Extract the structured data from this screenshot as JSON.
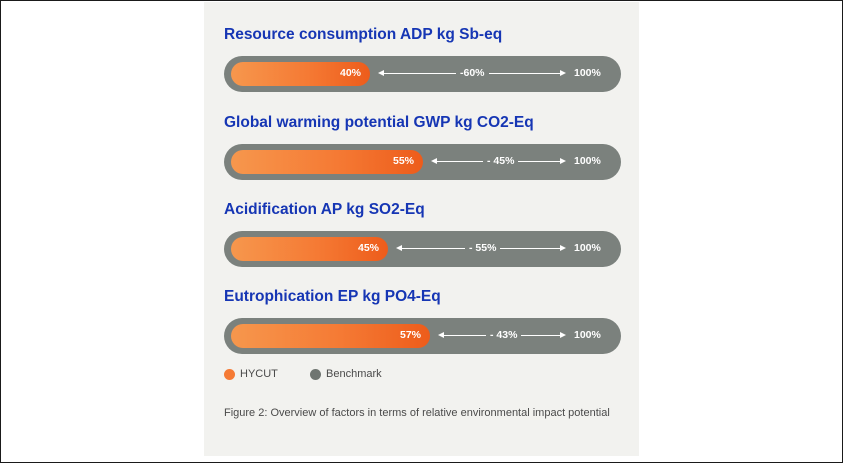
{
  "figure": {
    "caption": "Figure 2: Overview of factors in terms of relative environmental impact potential"
  },
  "legend": {
    "items": [
      {
        "label": "HYCUT",
        "color": "#f57a34"
      },
      {
        "label": "Benchmark",
        "color": "#6f7571"
      }
    ]
  },
  "chart_data": {
    "type": "bar",
    "orientation": "horizontal",
    "max_label": "100%",
    "categories": [
      "Resource consumption ADP kg Sb-eq",
      "Global warming potential GWP kg CO2-Eq",
      "Acidification AP kg SO2-Eq",
      "Eutrophication EP kg PO4-Eq"
    ],
    "series": [
      {
        "name": "HYCUT",
        "values": [
          40,
          55,
          45,
          57
        ],
        "labels": [
          "40%",
          "55%",
          "45%",
          "57%"
        ],
        "color": "#f57a34"
      },
      {
        "name": "Benchmark",
        "values": [
          100,
          100,
          100,
          100
        ],
        "labels": [
          "100%",
          "100%",
          "100%",
          "100%"
        ],
        "color": "#7b817d"
      }
    ],
    "differences": [
      "-60%",
      "- 45%",
      "- 55%",
      "- 43%"
    ],
    "xlim": [
      0,
      100
    ]
  }
}
